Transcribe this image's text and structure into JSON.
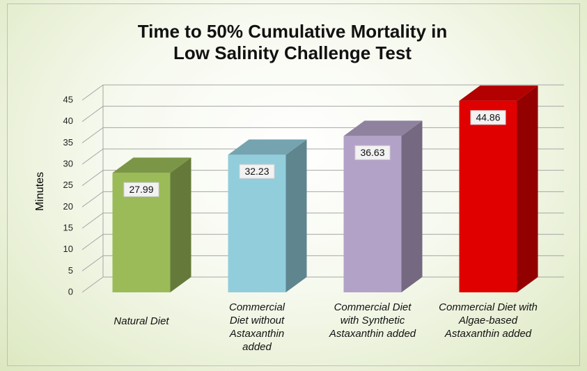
{
  "chart_data": {
    "type": "bar3d",
    "title": "Time to 50% Cumulative Mortality in Low Salinity Challenge Test",
    "y_label": "Minutes",
    "categories": [
      "Natural Diet",
      "Commercial Diet without Astaxanthin added",
      "Commercial Diet with Synthetic Astaxanthin added",
      "Commercial Diet with Algae-based Astaxanthin added"
    ],
    "values": [
      27.99,
      32.23,
      36.63,
      44.86
    ],
    "colors": [
      "#9bbb59",
      "#92cddc",
      "#b3a2c7",
      "#e00000"
    ],
    "ylim": [
      0,
      45
    ],
    "yticks": [
      0,
      5,
      10,
      15,
      20,
      25,
      30,
      35,
      40,
      45
    ],
    "grid": true
  }
}
